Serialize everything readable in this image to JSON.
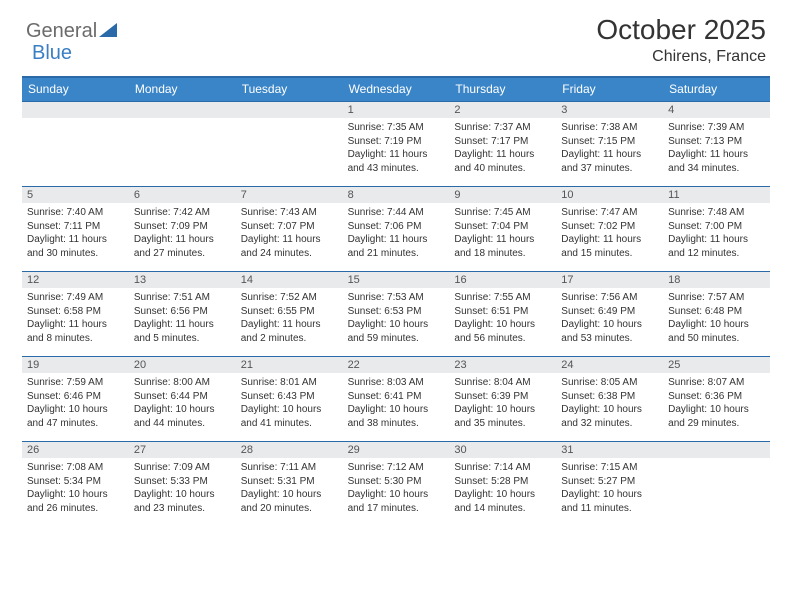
{
  "brand": {
    "general": "General",
    "blue": "Blue"
  },
  "header": {
    "title": "October 2025",
    "location": "Chirens, France"
  },
  "dows": [
    "Sunday",
    "Monday",
    "Tuesday",
    "Wednesday",
    "Thursday",
    "Friday",
    "Saturday"
  ],
  "style": {
    "header_bg": "#3a85c8",
    "border_color": "#2b6aa8",
    "daynum_bg": "#e8eaec",
    "title_fontsize": 28,
    "location_fontsize": 16,
    "dow_fontsize": 12,
    "body_fontsize": 10
  },
  "weeks": [
    [
      {
        "n": "",
        "sunrise": "",
        "sunset": "",
        "daylight": ""
      },
      {
        "n": "",
        "sunrise": "",
        "sunset": "",
        "daylight": ""
      },
      {
        "n": "",
        "sunrise": "",
        "sunset": "",
        "daylight": ""
      },
      {
        "n": "1",
        "sunrise": "Sunrise: 7:35 AM",
        "sunset": "Sunset: 7:19 PM",
        "daylight": "Daylight: 11 hours and 43 minutes."
      },
      {
        "n": "2",
        "sunrise": "Sunrise: 7:37 AM",
        "sunset": "Sunset: 7:17 PM",
        "daylight": "Daylight: 11 hours and 40 minutes."
      },
      {
        "n": "3",
        "sunrise": "Sunrise: 7:38 AM",
        "sunset": "Sunset: 7:15 PM",
        "daylight": "Daylight: 11 hours and 37 minutes."
      },
      {
        "n": "4",
        "sunrise": "Sunrise: 7:39 AM",
        "sunset": "Sunset: 7:13 PM",
        "daylight": "Daylight: 11 hours and 34 minutes."
      }
    ],
    [
      {
        "n": "5",
        "sunrise": "Sunrise: 7:40 AM",
        "sunset": "Sunset: 7:11 PM",
        "daylight": "Daylight: 11 hours and 30 minutes."
      },
      {
        "n": "6",
        "sunrise": "Sunrise: 7:42 AM",
        "sunset": "Sunset: 7:09 PM",
        "daylight": "Daylight: 11 hours and 27 minutes."
      },
      {
        "n": "7",
        "sunrise": "Sunrise: 7:43 AM",
        "sunset": "Sunset: 7:07 PM",
        "daylight": "Daylight: 11 hours and 24 minutes."
      },
      {
        "n": "8",
        "sunrise": "Sunrise: 7:44 AM",
        "sunset": "Sunset: 7:06 PM",
        "daylight": "Daylight: 11 hours and 21 minutes."
      },
      {
        "n": "9",
        "sunrise": "Sunrise: 7:45 AM",
        "sunset": "Sunset: 7:04 PM",
        "daylight": "Daylight: 11 hours and 18 minutes."
      },
      {
        "n": "10",
        "sunrise": "Sunrise: 7:47 AM",
        "sunset": "Sunset: 7:02 PM",
        "daylight": "Daylight: 11 hours and 15 minutes."
      },
      {
        "n": "11",
        "sunrise": "Sunrise: 7:48 AM",
        "sunset": "Sunset: 7:00 PM",
        "daylight": "Daylight: 11 hours and 12 minutes."
      }
    ],
    [
      {
        "n": "12",
        "sunrise": "Sunrise: 7:49 AM",
        "sunset": "Sunset: 6:58 PM",
        "daylight": "Daylight: 11 hours and 8 minutes."
      },
      {
        "n": "13",
        "sunrise": "Sunrise: 7:51 AM",
        "sunset": "Sunset: 6:56 PM",
        "daylight": "Daylight: 11 hours and 5 minutes."
      },
      {
        "n": "14",
        "sunrise": "Sunrise: 7:52 AM",
        "sunset": "Sunset: 6:55 PM",
        "daylight": "Daylight: 11 hours and 2 minutes."
      },
      {
        "n": "15",
        "sunrise": "Sunrise: 7:53 AM",
        "sunset": "Sunset: 6:53 PM",
        "daylight": "Daylight: 10 hours and 59 minutes."
      },
      {
        "n": "16",
        "sunrise": "Sunrise: 7:55 AM",
        "sunset": "Sunset: 6:51 PM",
        "daylight": "Daylight: 10 hours and 56 minutes."
      },
      {
        "n": "17",
        "sunrise": "Sunrise: 7:56 AM",
        "sunset": "Sunset: 6:49 PM",
        "daylight": "Daylight: 10 hours and 53 minutes."
      },
      {
        "n": "18",
        "sunrise": "Sunrise: 7:57 AM",
        "sunset": "Sunset: 6:48 PM",
        "daylight": "Daylight: 10 hours and 50 minutes."
      }
    ],
    [
      {
        "n": "19",
        "sunrise": "Sunrise: 7:59 AM",
        "sunset": "Sunset: 6:46 PM",
        "daylight": "Daylight: 10 hours and 47 minutes."
      },
      {
        "n": "20",
        "sunrise": "Sunrise: 8:00 AM",
        "sunset": "Sunset: 6:44 PM",
        "daylight": "Daylight: 10 hours and 44 minutes."
      },
      {
        "n": "21",
        "sunrise": "Sunrise: 8:01 AM",
        "sunset": "Sunset: 6:43 PM",
        "daylight": "Daylight: 10 hours and 41 minutes."
      },
      {
        "n": "22",
        "sunrise": "Sunrise: 8:03 AM",
        "sunset": "Sunset: 6:41 PM",
        "daylight": "Daylight: 10 hours and 38 minutes."
      },
      {
        "n": "23",
        "sunrise": "Sunrise: 8:04 AM",
        "sunset": "Sunset: 6:39 PM",
        "daylight": "Daylight: 10 hours and 35 minutes."
      },
      {
        "n": "24",
        "sunrise": "Sunrise: 8:05 AM",
        "sunset": "Sunset: 6:38 PM",
        "daylight": "Daylight: 10 hours and 32 minutes."
      },
      {
        "n": "25",
        "sunrise": "Sunrise: 8:07 AM",
        "sunset": "Sunset: 6:36 PM",
        "daylight": "Daylight: 10 hours and 29 minutes."
      }
    ],
    [
      {
        "n": "26",
        "sunrise": "Sunrise: 7:08 AM",
        "sunset": "Sunset: 5:34 PM",
        "daylight": "Daylight: 10 hours and 26 minutes."
      },
      {
        "n": "27",
        "sunrise": "Sunrise: 7:09 AM",
        "sunset": "Sunset: 5:33 PM",
        "daylight": "Daylight: 10 hours and 23 minutes."
      },
      {
        "n": "28",
        "sunrise": "Sunrise: 7:11 AM",
        "sunset": "Sunset: 5:31 PM",
        "daylight": "Daylight: 10 hours and 20 minutes."
      },
      {
        "n": "29",
        "sunrise": "Sunrise: 7:12 AM",
        "sunset": "Sunset: 5:30 PM",
        "daylight": "Daylight: 10 hours and 17 minutes."
      },
      {
        "n": "30",
        "sunrise": "Sunrise: 7:14 AM",
        "sunset": "Sunset: 5:28 PM",
        "daylight": "Daylight: 10 hours and 14 minutes."
      },
      {
        "n": "31",
        "sunrise": "Sunrise: 7:15 AM",
        "sunset": "Sunset: 5:27 PM",
        "daylight": "Daylight: 10 hours and 11 minutes."
      },
      {
        "n": "",
        "sunrise": "",
        "sunset": "",
        "daylight": ""
      }
    ]
  ]
}
